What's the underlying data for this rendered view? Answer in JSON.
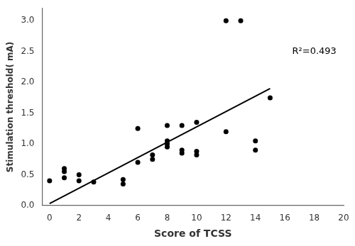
{
  "chart_data": {
    "type": "scatter",
    "xlabel": "Score of TCSS",
    "ylabel": "Stimulation threshold( mA)",
    "series": [
      {
        "type": "scatter",
        "color": "#000000",
        "x": [
          0,
          1,
          1,
          1,
          2,
          2,
          3,
          5,
          5,
          6,
          6,
          7,
          7,
          8,
          8,
          8,
          8,
          9,
          9,
          9,
          10,
          10,
          10,
          12,
          12,
          13,
          14,
          14,
          15
        ],
        "values": [
          0.4,
          0.45,
          0.55,
          0.6,
          0.4,
          0.5,
          0.38,
          0.35,
          0.42,
          0.7,
          1.25,
          0.75,
          0.82,
          0.95,
          1.0,
          1.05,
          1.3,
          0.85,
          0.9,
          1.3,
          0.82,
          0.88,
          1.35,
          1.2,
          3.0,
          3.0,
          0.9,
          1.05,
          1.75
        ]
      },
      {
        "type": "line",
        "color": "#000000",
        "x": [
          0,
          15.0
        ],
        "values": [
          0.03,
          1.9
        ]
      }
    ],
    "annotations": [
      {
        "text": "R²=0.493",
        "x": 16.5,
        "y": 2.5
      }
    ],
    "xlim": [
      -0.5,
      20
    ],
    "ylim": [
      0.0,
      3.2
    ],
    "xticks": [
      0,
      2,
      4,
      6,
      8,
      10,
      12,
      14,
      16,
      18,
      20
    ],
    "yticks": [
      {
        "value": 0.0,
        "label": "0.0"
      },
      0.5,
      {
        "value": 1.0,
        "label": "1.0"
      },
      1.5,
      {
        "value": 2.0,
        "label": "2.0"
      },
      2.5,
      {
        "value": 3.0,
        "label": "3.0"
      }
    ],
    "grid": false
  }
}
